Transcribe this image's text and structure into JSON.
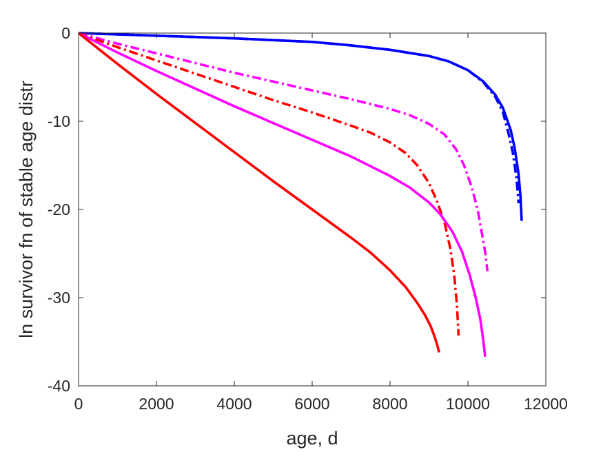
{
  "chart_data": {
    "type": "line",
    "title": "",
    "xlabel": "age, d",
    "ylabel": "ln survivor fn of stable age distr",
    "xlim": [
      0,
      12000
    ],
    "ylim": [
      -40,
      0
    ],
    "xticks": [
      0,
      2000,
      4000,
      6000,
      8000,
      10000,
      12000
    ],
    "yticks": [
      0,
      -10,
      -20,
      -30,
      -40
    ],
    "xtick_labels": [
      "0",
      "2000",
      "4000",
      "6000",
      "8000",
      "10000",
      "12000"
    ],
    "ytick_labels": [
      "0",
      "-10",
      "-20",
      "-30",
      "-40"
    ],
    "grid": false,
    "legend": "none",
    "series": [
      {
        "color": "#0000ff",
        "style": "solid",
        "x": [
          0,
          2000,
          4000,
          6000,
          7000,
          8000,
          9000,
          9500,
          10000,
          10400,
          10700,
          10900,
          11100,
          11200,
          11300,
          11350,
          11380
        ],
        "y": [
          0,
          -0.3,
          -0.6,
          -1.0,
          -1.4,
          -1.9,
          -2.6,
          -3.2,
          -4.2,
          -5.5,
          -7.0,
          -8.5,
          -11.0,
          -13.0,
          -16.0,
          -18.5,
          -21.3
        ]
      },
      {
        "color": "#0000ff",
        "style": "dashdot",
        "x": [
          0,
          2000,
          4000,
          6000,
          7000,
          8000,
          9000,
          9500,
          10000,
          10400,
          10700,
          10900,
          11050,
          11150,
          11250,
          11300
        ],
        "y": [
          0,
          -0.3,
          -0.6,
          -1.0,
          -1.4,
          -1.9,
          -2.6,
          -3.2,
          -4.2,
          -5.6,
          -7.2,
          -9.0,
          -11.5,
          -13.5,
          -16.5,
          -19.3
        ]
      },
      {
        "color": "#ff00ff",
        "style": "dashdot",
        "x": [
          0,
          1000,
          2000,
          3000,
          4000,
          5000,
          6000,
          7000,
          8000,
          8500,
          9000,
          9400,
          9700,
          9900,
          10100,
          10250,
          10350,
          10450,
          10500
        ],
        "y": [
          0,
          -1.2,
          -2.3,
          -3.4,
          -4.5,
          -5.5,
          -6.5,
          -7.5,
          -8.6,
          -9.3,
          -10.3,
          -11.5,
          -13.2,
          -15.0,
          -17.5,
          -20.0,
          -22.5,
          -25.0,
          -27.0
        ]
      },
      {
        "color": "#ff0000",
        "style": "dashdot",
        "x": [
          0,
          1000,
          2000,
          3000,
          4000,
          5000,
          6000,
          7000,
          7500,
          8000,
          8400,
          8700,
          9000,
          9200,
          9400,
          9550,
          9650,
          9720,
          9760
        ],
        "y": [
          0,
          -1.6,
          -3.1,
          -4.6,
          -6.1,
          -7.6,
          -9.0,
          -10.5,
          -11.3,
          -12.4,
          -13.6,
          -15.0,
          -17.0,
          -19.0,
          -21.5,
          -24.5,
          -27.5,
          -31.0,
          -34.3
        ]
      },
      {
        "color": "#ff00ff",
        "style": "solid",
        "x": [
          0,
          1000,
          2000,
          3000,
          4000,
          5000,
          6000,
          7000,
          7500,
          8000,
          8500,
          9000,
          9300,
          9600,
          9850,
          10050,
          10200,
          10320,
          10400,
          10440
        ],
        "y": [
          0,
          -2.2,
          -4.3,
          -6.3,
          -8.3,
          -10.2,
          -12.1,
          -14.0,
          -15.1,
          -16.2,
          -17.5,
          -19.2,
          -20.6,
          -22.5,
          -24.8,
          -27.5,
          -30.0,
          -32.5,
          -35.0,
          -36.7
        ]
      },
      {
        "color": "#ff0000",
        "style": "solid",
        "x": [
          0,
          1000,
          2000,
          3000,
          4000,
          5000,
          6000,
          7000,
          7500,
          8000,
          8400,
          8700,
          8900,
          9050,
          9150,
          9220,
          9260
        ],
        "y": [
          0,
          -3.5,
          -6.9,
          -10.2,
          -13.5,
          -16.8,
          -20.0,
          -23.2,
          -24.9,
          -26.9,
          -28.8,
          -30.6,
          -32.0,
          -33.3,
          -34.5,
          -35.5,
          -36.2
        ]
      }
    ]
  }
}
